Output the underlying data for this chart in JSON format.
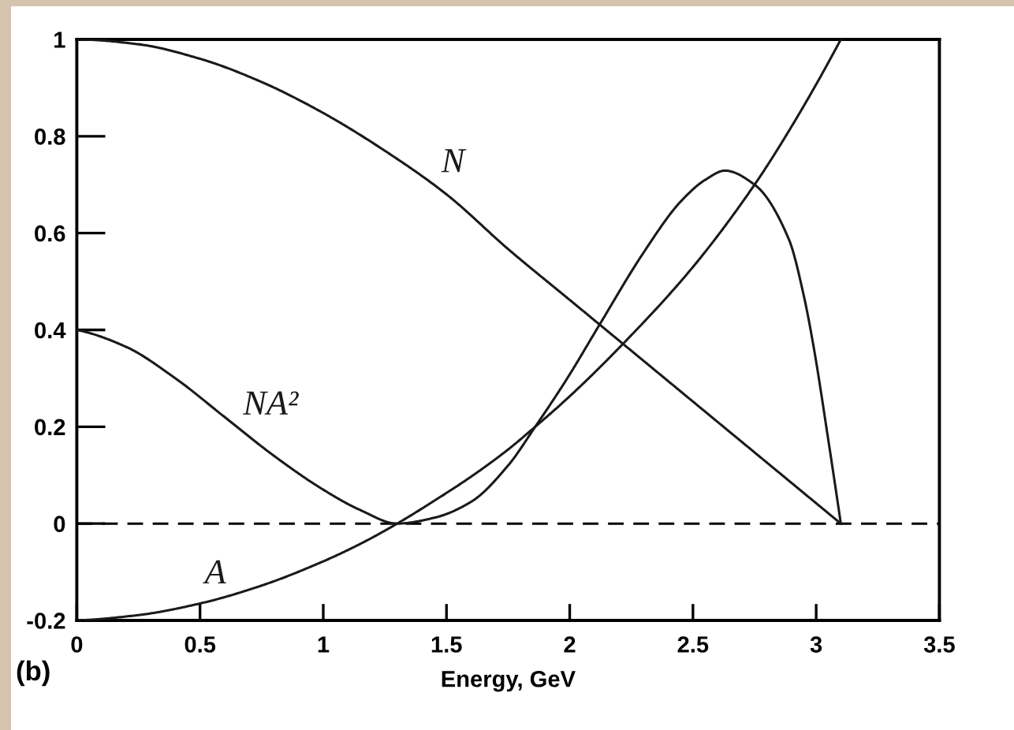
{
  "chart_data": {
    "type": "line",
    "xlabel": "Energy, GeV",
    "annotations": [
      "(b)"
    ],
    "xlim": [
      0,
      3.5
    ],
    "xticks": [
      0,
      0.5,
      1,
      1.5,
      2,
      2.5,
      3,
      3.5
    ],
    "ylim": [
      -0.2,
      1
    ],
    "yticks": [
      -0.2,
      0,
      0.2,
      0.4,
      0.6,
      0.8,
      1
    ],
    "grid": false,
    "legend": false,
    "marker": "none",
    "line_style": "solid",
    "ref_lines": [
      {
        "axis": "y",
        "value": 0,
        "line_style": "dashed",
        "color": "#000000"
      }
    ],
    "series": [
      {
        "name": "N",
        "color": "#1a1a1a",
        "x": [
          0,
          0.25,
          0.5,
          0.75,
          1.0,
          1.25,
          1.5,
          1.75,
          2.0,
          2.25,
          2.5,
          2.75,
          3.0,
          3.1
        ],
        "values": [
          1.0,
          0.99,
          0.96,
          0.912,
          0.848,
          0.77,
          0.68,
          0.567,
          0.462,
          0.357,
          0.252,
          0.147,
          0.042,
          0.0
        ]
      },
      {
        "name": "NA²",
        "color": "#1a1a1a",
        "x": [
          0,
          0.2,
          0.4,
          0.6,
          0.8,
          1.0,
          1.15,
          1.3,
          1.45,
          1.6,
          1.75,
          1.86,
          1.99,
          2.12,
          2.3,
          2.45,
          2.55,
          2.63,
          2.75,
          2.89,
          2.95,
          2.99,
          3.05,
          3.1
        ],
        "values": [
          0.4,
          0.365,
          0.3,
          0.22,
          0.14,
          0.07,
          0.028,
          0.0,
          0.012,
          0.045,
          0.12,
          0.2,
          0.3,
          0.41,
          0.56,
          0.665,
          0.71,
          0.729,
          0.7,
          0.586,
          0.47,
          0.364,
          0.17,
          0.0
        ]
      },
      {
        "name": "A",
        "color": "#1a1a1a",
        "x": [
          0,
          0.25,
          0.5,
          0.75,
          1.0,
          1.15,
          1.3,
          1.45,
          1.6,
          1.75,
          1.86,
          2.0,
          2.21,
          2.5,
          2.75,
          2.9,
          3.1
        ],
        "values": [
          -0.2,
          -0.189,
          -0.165,
          -0.128,
          -0.078,
          -0.042,
          0.0,
          0.047,
          0.097,
          0.153,
          0.2,
          0.263,
          0.368,
          0.53,
          0.7,
          0.82,
          1.0
        ]
      }
    ]
  }
}
